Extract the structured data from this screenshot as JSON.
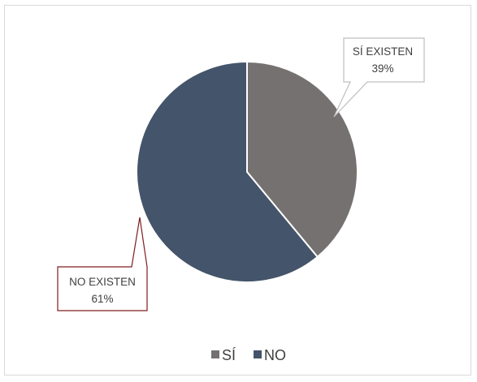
{
  "chart_data": {
    "type": "pie",
    "title": "",
    "series": [
      {
        "name": "",
        "categories": [
          "SÍ",
          "NO"
        ],
        "values": [
          39,
          61
        ]
      }
    ],
    "slices": [
      {
        "category": "SÍ",
        "label": "SÍ EXISTEN",
        "value": 39,
        "percent_label": "39%",
        "color": "#767171"
      },
      {
        "category": "NO",
        "label": "NO EXISTEN",
        "value": 61,
        "percent_label": "61%",
        "color": "#44546a"
      }
    ],
    "legend": {
      "placement": "bottom",
      "entries": [
        "SÍ",
        "NO"
      ]
    },
    "callouts": {
      "si_border_color": "#bfbfbf",
      "no_border_color": "#7f1d1d"
    }
  }
}
